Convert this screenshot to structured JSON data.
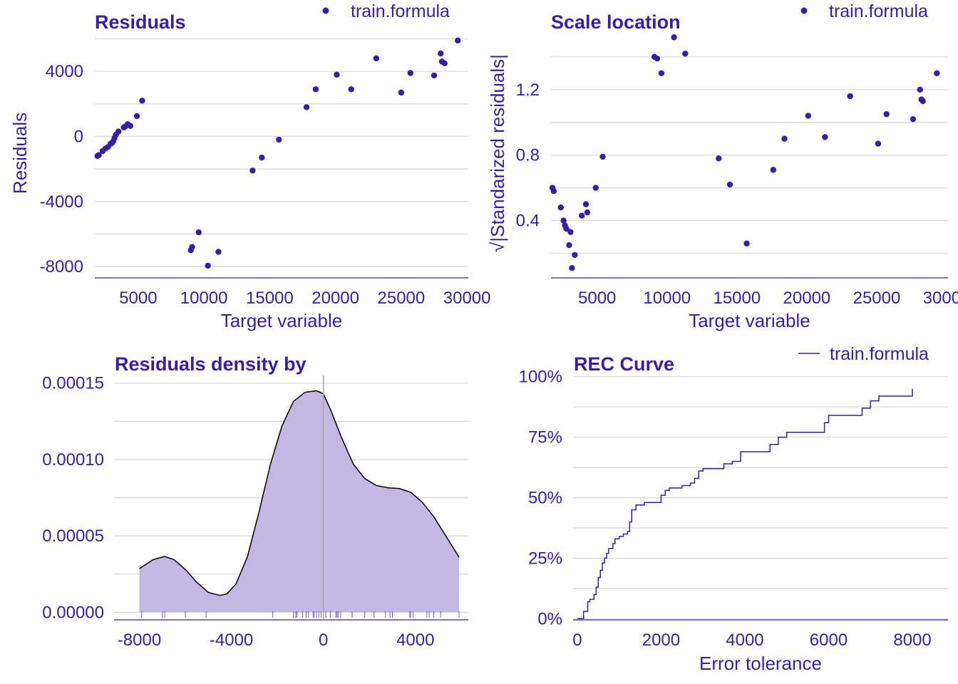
{
  "colors": {
    "text": "#371ea3",
    "point": "#371ea3",
    "grid": "#dcdcdc",
    "axis": "#371ea3",
    "density_fill": "#c1b9e3",
    "density_line": "#000000",
    "zero_line": "#a6a6a6",
    "rec_line": "#371ea3"
  },
  "chart_data": [
    {
      "type": "scatter",
      "title": "Residuals",
      "xlabel": "Target variable",
      "ylabel": "Residuals",
      "legend": "train.formula",
      "legend_position": "top-right",
      "grid": true,
      "xlim": [
        1700,
        30100
      ],
      "ylim": [
        -8700,
        6200
      ],
      "xticks": [
        5000,
        10000,
        15000,
        20000,
        25000,
        30000
      ],
      "yticks": [
        4000,
        0,
        -4000,
        -8000
      ],
      "ytick_labels": [
        "4000",
        "0",
        "-4000",
        "-8000"
      ],
      "x": [
        1900,
        2000,
        2300,
        2500,
        2700,
        2900,
        3000,
        3100,
        3200,
        3300,
        3500,
        3900,
        4000,
        4200,
        4400,
        4900,
        5300,
        9000,
        9100,
        9600,
        10300,
        11100,
        13700,
        14400,
        15700,
        17800,
        18500,
        20100,
        21200,
        23100,
        25000,
        25700,
        27500,
        28000,
        28100,
        28300,
        29300
      ],
      "y": [
        -1200,
        -1150,
        -900,
        -750,
        -650,
        -450,
        -400,
        -300,
        -100,
        100,
        300,
        550,
        600,
        750,
        650,
        1250,
        2200,
        -7000,
        -6800,
        -5900,
        -7950,
        -7100,
        -2100,
        -1300,
        -200,
        1800,
        2900,
        3800,
        2900,
        4800,
        2700,
        3900,
        3750,
        5100,
        4600,
        4500,
        5900
      ]
    },
    {
      "type": "scatter",
      "title": "Scale location",
      "xlabel": "Target variable",
      "ylabel": "√|Standarized residuals|",
      "legend": "train.formula",
      "legend_position": "top-right",
      "grid": true,
      "xlim": [
        1700,
        30100
      ],
      "ylim": [
        0.05,
        1.53
      ],
      "xticks": [
        5000,
        10000,
        15000,
        20000,
        25000,
        30000
      ],
      "yticks": [
        0.4,
        0.8,
        1.2
      ],
      "ytick_labels": [
        "0.4",
        "0.8",
        "1.2"
      ],
      "x": [
        1800,
        1900,
        2400,
        2600,
        2700,
        2800,
        3000,
        3100,
        3200,
        3400,
        3900,
        4200,
        4300,
        4900,
        5400,
        9100,
        9300,
        9600,
        10500,
        11300,
        13700,
        14500,
        15700,
        17600,
        18400,
        20100,
        21300,
        23100,
        25100,
        25700,
        27600,
        28100,
        28200,
        28300,
        29300
      ],
      "y": [
        0.6,
        0.58,
        0.48,
        0.4,
        0.37,
        0.35,
        0.25,
        0.33,
        0.11,
        0.19,
        0.43,
        0.5,
        0.45,
        0.6,
        0.79,
        1.4,
        1.39,
        1.3,
        1.52,
        1.42,
        0.78,
        0.62,
        0.26,
        0.71,
        0.9,
        1.04,
        0.91,
        1.16,
        0.87,
        1.05,
        1.02,
        1.2,
        1.14,
        1.13,
        1.3
      ]
    },
    {
      "type": "area",
      "title": "Residuals density by",
      "xlabel": "",
      "ylabel": "",
      "grid": true,
      "xlim": [
        -9100,
        6300
      ],
      "ylim": [
        -5e-06,
        0.000155
      ],
      "xticks": [
        -8000,
        -4000,
        0,
        4000
      ],
      "xtick_labels": [
        "-8000",
        "-4000",
        "0",
        "4000"
      ],
      "yticks": [
        0,
        5e-05,
        0.0001,
        0.00015
      ],
      "ytick_labels": [
        "0.00000",
        "0.00005",
        "0.00010",
        "0.00015"
      ],
      "vline_x": 0,
      "x": [
        -8000,
        -7400,
        -6900,
        -6500,
        -6000,
        -5500,
        -5000,
        -4500,
        -4200,
        -3800,
        -3300,
        -2800,
        -2300,
        -1800,
        -1300,
        -800,
        -300,
        0,
        300,
        800,
        1300,
        1800,
        2300,
        2800,
        3300,
        3800,
        4300,
        4800,
        5300,
        5900
      ],
      "y": [
        2.85e-05,
        3.45e-05,
        3.65e-05,
        3.45e-05,
        2.8e-05,
        1.95e-05,
        1.3e-05,
        1.1e-05,
        1.2e-05,
        1.85e-05,
        3.65e-05,
        6.55e-05,
        9.7e-05,
        0.000122,
        0.000138,
        0.000144,
        0.000145,
        0.000143,
        0.000133,
        0.000114,
        9.7e-05,
        8.75e-05,
        8.3e-05,
        8.15e-05,
        8.1e-05,
        7.85e-05,
        7.2e-05,
        6.25e-05,
        5.05e-05,
        3.6e-05
      ],
      "rug": [
        -7900,
        -7000,
        -6900,
        -6000,
        -5100,
        -2200,
        -1300,
        -1200,
        -1150,
        -900,
        -750,
        -650,
        -450,
        -400,
        -300,
        -200,
        -100,
        100,
        300,
        550,
        600,
        650,
        750,
        1250,
        1800,
        2200,
        2700,
        2900,
        3000,
        3750,
        3800,
        3900,
        4500,
        4600,
        4800,
        5100,
        5900
      ]
    },
    {
      "type": "line",
      "title": "REC Curve",
      "xlabel": "Error tolerance",
      "ylabel": "",
      "legend": "train.formula",
      "legend_position": "top-right",
      "grid": true,
      "xlim": [
        -100,
        8850
      ],
      "ylim": [
        -0.005,
        1.005
      ],
      "xticks": [
        0,
        2000,
        4000,
        6000,
        8000
      ],
      "yticks": [
        0,
        0.25,
        0.5,
        0.75,
        1
      ],
      "ytick_labels": [
        "0%",
        "25%",
        "50%",
        "75%",
        "100%"
      ],
      "x": [
        0,
        150,
        250,
        300,
        400,
        450,
        500,
        550,
        600,
        650,
        700,
        750,
        850,
        900,
        1000,
        1100,
        1200,
        1250,
        1300,
        1400,
        1600,
        2000,
        2100,
        2200,
        2500,
        2700,
        2800,
        2900,
        3000,
        3500,
        3700,
        3900,
        4600,
        4800,
        5000,
        5900,
        6000,
        6800,
        7000,
        7200,
        8000
      ],
      "y": [
        0,
        0.03,
        0.07,
        0.08,
        0.1,
        0.13,
        0.17,
        0.2,
        0.23,
        0.25,
        0.27,
        0.29,
        0.31,
        0.33,
        0.34,
        0.35,
        0.36,
        0.4,
        0.45,
        0.47,
        0.48,
        0.51,
        0.53,
        0.54,
        0.55,
        0.56,
        0.58,
        0.61,
        0.62,
        0.64,
        0.65,
        0.69,
        0.72,
        0.75,
        0.77,
        0.81,
        0.84,
        0.87,
        0.9,
        0.92,
        0.95
      ]
    }
  ]
}
